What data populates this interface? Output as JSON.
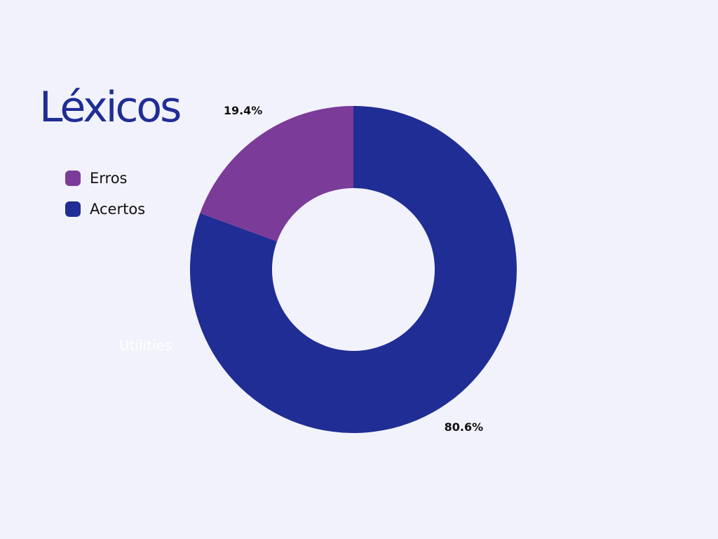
{
  "chart_data": {
    "type": "pie",
    "title": "Léxicos",
    "donut": true,
    "categories": [
      "Erros",
      "Acertos"
    ],
    "values": [
      19.4,
      80.6
    ],
    "data_labels": [
      "19.4%",
      "80.6%"
    ],
    "colors": [
      "#7b3b98",
      "#1f2d94"
    ],
    "legend_position": "left",
    "stray_label": "Utilities"
  }
}
